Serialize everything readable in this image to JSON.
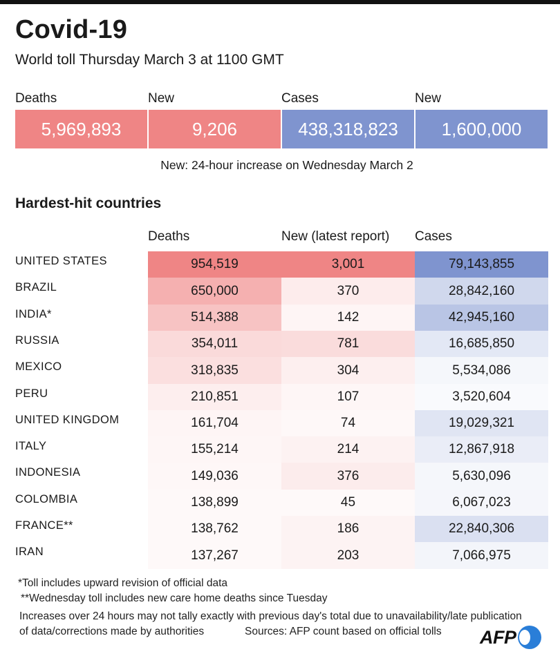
{
  "header": {
    "title": "Covid-19",
    "subtitle": "World toll Thursday March 3 at 1100 GMT"
  },
  "totals": [
    {
      "label": "Deaths",
      "value": "5,969,893",
      "color": "#ef8585"
    },
    {
      "label": "New",
      "value": "9,206",
      "color": "#ef8585"
    },
    {
      "label": "Cases",
      "value": "438,318,823",
      "color": "#7f94cf"
    },
    {
      "label": "New",
      "value": "1,600,000",
      "color": "#7f94cf"
    }
  ],
  "totals_note": "New: 24-hour increase on Wednesday March 2",
  "section_title": "Hardest-hit countries",
  "chart_data": {
    "type": "table",
    "title": "Hardest-hit countries",
    "columns": [
      "Deaths",
      "New (latest report)",
      "Cases"
    ],
    "rows": [
      {
        "country": "UNITED STATES",
        "deaths": "954,519",
        "new": "3,001",
        "cases": "79,143,855"
      },
      {
        "country": "BRAZIL",
        "deaths": "650,000",
        "new": "370",
        "cases": "28,842,160"
      },
      {
        "country": "INDIA*",
        "deaths": "514,388",
        "new": "142",
        "cases": "42,945,160"
      },
      {
        "country": "RUSSIA",
        "deaths": "354,011",
        "new": "781",
        "cases": "16,685,850"
      },
      {
        "country": "MEXICO",
        "deaths": "318,835",
        "new": "304",
        "cases": "5,534,086"
      },
      {
        "country": "PERU",
        "deaths": "210,851",
        "new": "107",
        "cases": "3,520,604"
      },
      {
        "country": "UNITED KINGDOM",
        "deaths": "161,704",
        "new": "74",
        "cases": "19,029,321"
      },
      {
        "country": "ITALY",
        "deaths": "155,214",
        "new": "214",
        "cases": "12,867,918"
      },
      {
        "country": "INDONESIA",
        "deaths": "149,036",
        "new": "376",
        "cases": "5,630,096"
      },
      {
        "country": "COLOMBIA",
        "deaths": "138,899",
        "new": "45",
        "cases": "6,067,023"
      },
      {
        "country": "FRANCE**",
        "deaths": "138,762",
        "new": "186",
        "cases": "22,840,306"
      },
      {
        "country": "IRAN",
        "deaths": "137,267",
        "new": "203",
        "cases": "7,066,975"
      }
    ],
    "heat_colors": {
      "deaths_new": "#ef8585",
      "cases": "#7f94cf"
    }
  },
  "footnotes": {
    "note1": "*Toll includes upward revision of official data",
    "note2": "**Wednesday toll includes new care home deaths since Tuesday",
    "note3_line1": "Increases over 24 hours may not tally exactly with previous day's total due to unavailability/late publication",
    "note3_line2": "of data/corrections made by authorities",
    "sources": "Sources: AFP count based on official tolls"
  },
  "logo": {
    "text": "AFP"
  }
}
